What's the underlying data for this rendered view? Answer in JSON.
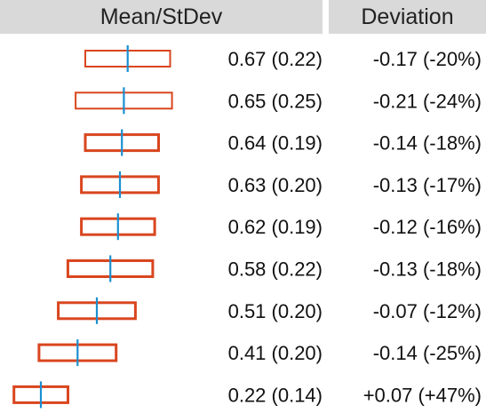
{
  "headers": {
    "mean": "Mean/StDev",
    "deviation": "Deviation"
  },
  "chart_data": {
    "type": "table",
    "columns": [
      "Mean/StDev",
      "Deviation"
    ],
    "rows": [
      {
        "mean": 0.67,
        "stdev": 0.22,
        "deviation": -0.17,
        "deviation_pct": -20,
        "mean_label": "0.67 (0.22)",
        "deviation_label": "-0.17 (-20%)"
      },
      {
        "mean": 0.65,
        "stdev": 0.25,
        "deviation": -0.21,
        "deviation_pct": -24,
        "mean_label": "0.65 (0.25)",
        "deviation_label": "-0.21 (-24%)"
      },
      {
        "mean": 0.64,
        "stdev": 0.19,
        "deviation": -0.14,
        "deviation_pct": -18,
        "mean_label": "0.64 (0.19)",
        "deviation_label": "-0.14 (-18%)"
      },
      {
        "mean": 0.63,
        "stdev": 0.2,
        "deviation": -0.13,
        "deviation_pct": -17,
        "mean_label": "0.63 (0.20)",
        "deviation_label": "-0.13 (-17%)"
      },
      {
        "mean": 0.62,
        "stdev": 0.19,
        "deviation": -0.12,
        "deviation_pct": -16,
        "mean_label": "0.62 (0.19)",
        "deviation_label": "-0.12 (-16%)"
      },
      {
        "mean": 0.58,
        "stdev": 0.22,
        "deviation": -0.13,
        "deviation_pct": -18,
        "mean_label": "0.58 (0.22)",
        "deviation_label": "-0.13 (-18%)"
      },
      {
        "mean": 0.51,
        "stdev": 0.2,
        "deviation": -0.07,
        "deviation_pct": -12,
        "mean_label": "0.51 (0.20)",
        "deviation_label": "-0.07 (-12%)"
      },
      {
        "mean": 0.41,
        "stdev": 0.2,
        "deviation": -0.14,
        "deviation_pct": -25,
        "mean_label": "0.41 (0.20)",
        "deviation_label": "-0.14 (-25%)"
      },
      {
        "mean": 0.22,
        "stdev": 0.14,
        "deviation": 0.07,
        "deviation_pct": 47,
        "mean_label": "0.22 (0.14)",
        "deviation_label": "+0.07 (+47%)"
      }
    ]
  },
  "colors": {
    "box": "#d9461f",
    "mean_line": "#1b8fd1",
    "header_bg": "#d9d9d9",
    "text": "#111111"
  }
}
